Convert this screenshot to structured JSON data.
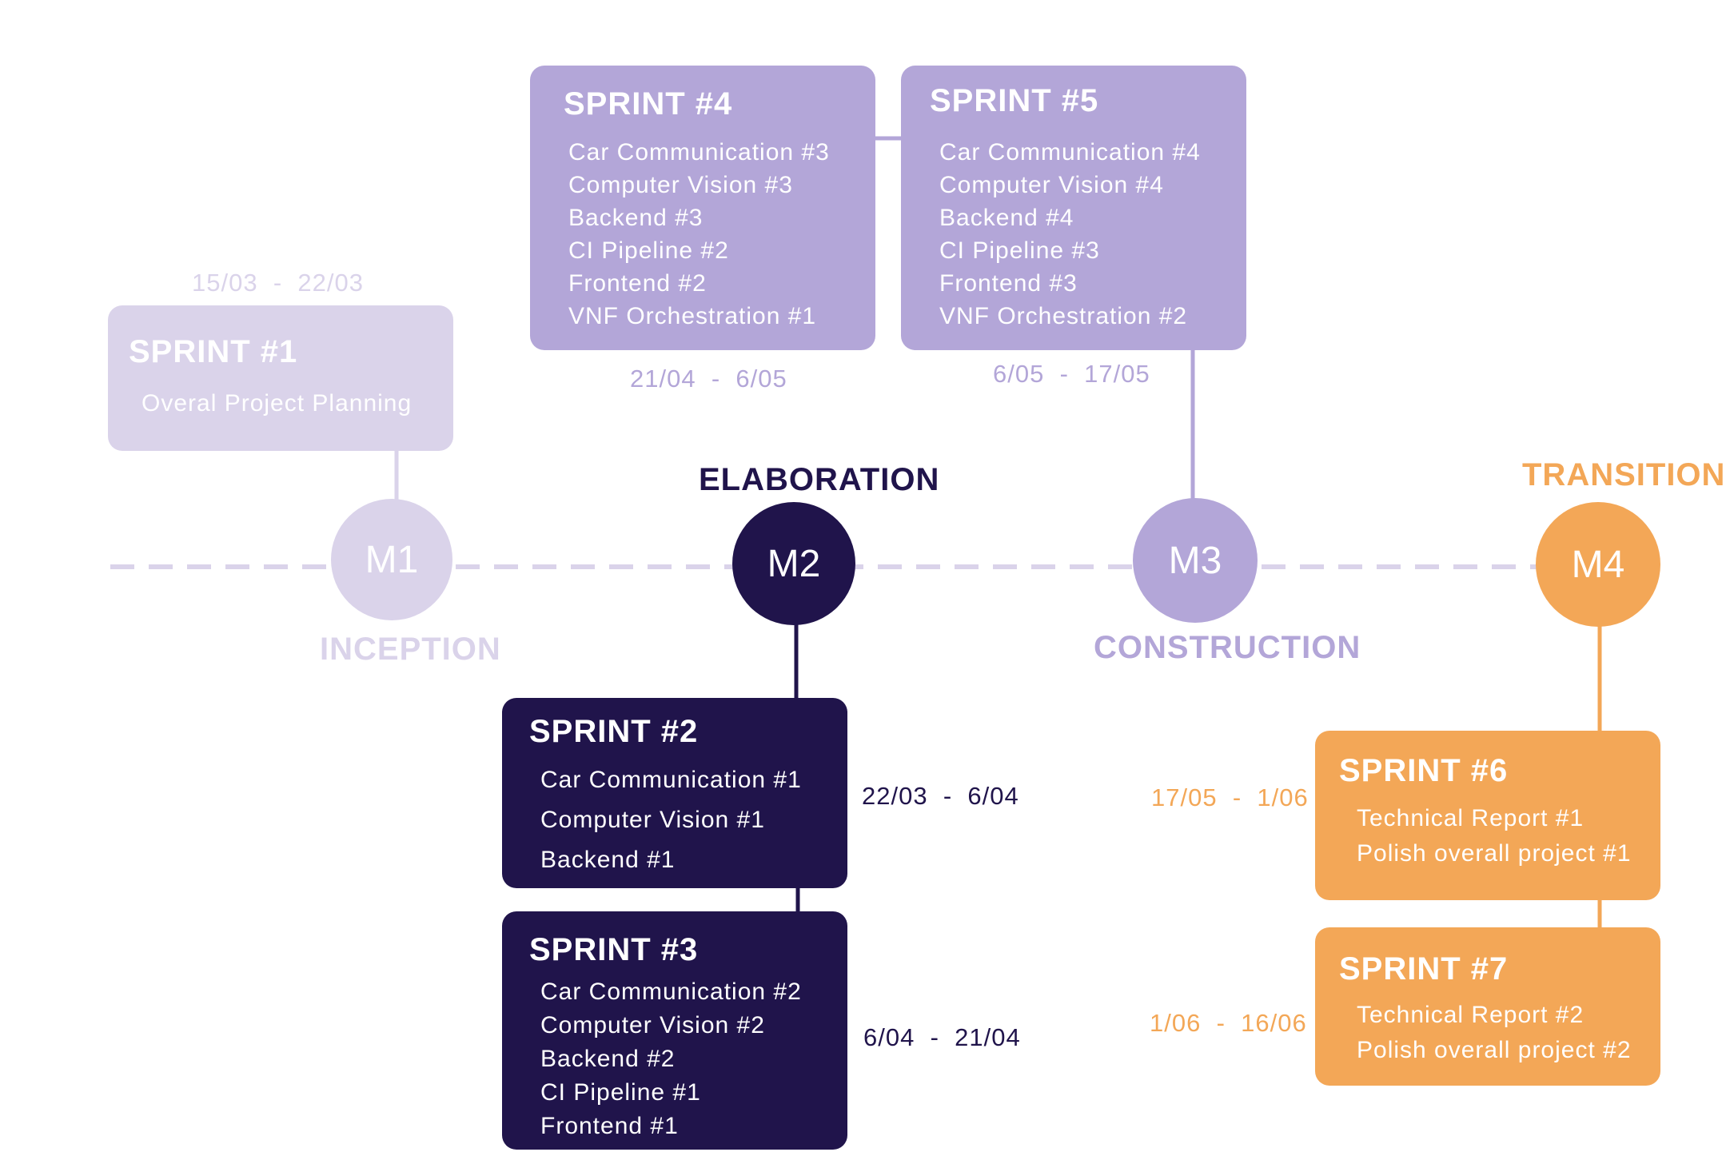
{
  "colors": {
    "pale": "#dad3ea",
    "purple": "#b3a6d8",
    "navy": "#20144b",
    "orange": "#f3a757"
  },
  "milestones": [
    {
      "label": "M1",
      "phase": "INCEPTION"
    },
    {
      "label": "M2",
      "phase": "ELABORATION"
    },
    {
      "label": "M3",
      "phase": "CONSTRUCTION"
    },
    {
      "label": "M4",
      "phase": "TRANSITION"
    }
  ],
  "sprints": [
    {
      "title": "SPRINT #1",
      "items": [
        "Overal Project Planning"
      ],
      "dates": [
        "15/03",
        "22/03"
      ]
    },
    {
      "title": "SPRINT #2",
      "items": [
        "Car Communication #1",
        "Computer Vision #1",
        "Backend #1"
      ],
      "dates": [
        "22/03",
        "6/04"
      ]
    },
    {
      "title": "SPRINT #3",
      "items": [
        "Car Communication #2",
        "Computer Vision #2",
        "Backend #2",
        "CI Pipeline #1",
        "Frontend #1"
      ],
      "dates": [
        "6/04",
        "21/04"
      ]
    },
    {
      "title": "SPRINT #4",
      "items": [
        "Car Communication #3",
        "Computer Vision #3",
        "Backend #3",
        "CI Pipeline #2",
        "Frontend #2",
        "VNF Orchestration #1"
      ],
      "dates": [
        "21/04",
        "6/05"
      ]
    },
    {
      "title": "SPRINT #5",
      "items": [
        "Car Communication #4",
        "Computer Vision #4",
        "Backend #4",
        "CI Pipeline #3",
        "Frontend #3",
        "VNF Orchestration #2"
      ],
      "dates": [
        "6/05",
        "17/05"
      ]
    },
    {
      "title": "SPRINT #6",
      "items": [
        "Technical Report #1",
        "Polish overall project #1"
      ],
      "dates": [
        "17/05",
        "1/06"
      ]
    },
    {
      "title": "SPRINT #7",
      "items": [
        "Technical Report #2",
        "Polish overall project #2"
      ],
      "dates": [
        "1/06",
        "16/06"
      ]
    }
  ],
  "date_separator": "-"
}
